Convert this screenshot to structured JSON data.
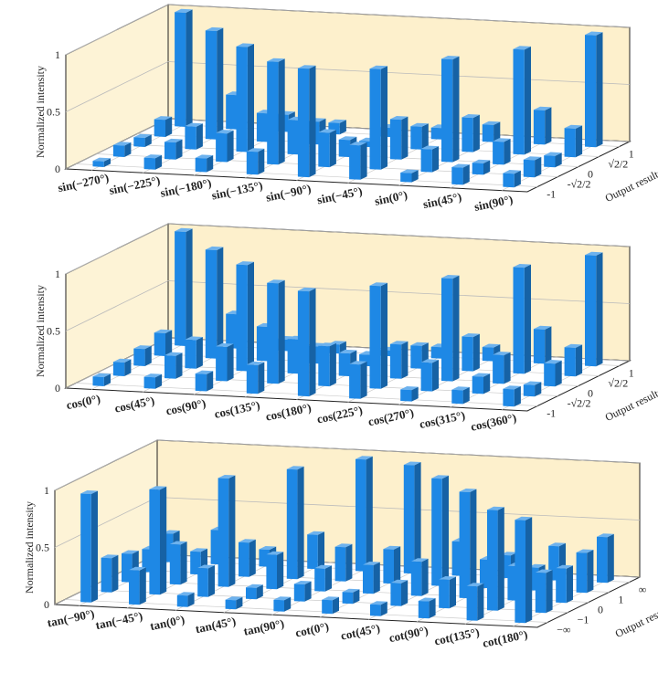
{
  "chart_data": [
    {
      "type": "bar3d",
      "zlabel": "Normalized intensity",
      "depth_label": "Output results",
      "color": "#1e88e5",
      "zlim": [
        0,
        1
      ],
      "zticks": [
        0,
        0.5,
        1
      ],
      "categories": [
        "sin(−270°)",
        "sin(−225°)",
        "sin(−180°)",
        "sin(−135°)",
        "sin(−90°)",
        "sin(−45°)",
        "sin(0°)",
        "sin(45°)",
        "sin(90°)"
      ],
      "series": [
        {
          "name": "-1",
          "values": [
            0.05,
            0.1,
            0.12,
            0.2,
            0.95,
            0.3,
            0.08,
            0.15,
            0.12
          ]
        },
        {
          "name": "-√2/2",
          "values": [
            0.1,
            0.15,
            0.25,
            0.9,
            0.3,
            0.88,
            0.2,
            0.1,
            0.15
          ]
        },
        {
          "name": "0",
          "values": [
            0.08,
            0.2,
            0.92,
            0.3,
            0.15,
            0.35,
            0.9,
            0.2,
            0.1
          ]
        },
        {
          "name": "√2/2",
          "values": [
            0.15,
            0.95,
            0.25,
            0.2,
            0.05,
            0.2,
            0.3,
            0.92,
            0.25
          ]
        },
        {
          "name": "1",
          "values": [
            1.0,
            0.3,
            0.15,
            0.1,
            0.08,
            0.1,
            0.15,
            0.3,
            0.98
          ]
        }
      ]
    },
    {
      "type": "bar3d",
      "zlabel": "Normalized intensity",
      "depth_label": "Output results",
      "color": "#1e88e5",
      "zlim": [
        0,
        1
      ],
      "zticks": [
        0,
        0.5,
        1
      ],
      "categories": [
        "cos(0°)",
        "cos(45°)",
        "cos(90°)",
        "cos(135°)",
        "cos(180°)",
        "cos(225°)",
        "cos(270°)",
        "cos(315°)",
        "cos(360°)"
      ],
      "series": [
        {
          "name": "-1",
          "values": [
            0.08,
            0.1,
            0.15,
            0.25,
            0.92,
            0.3,
            0.1,
            0.12,
            0.15
          ]
        },
        {
          "name": "-√2/2",
          "values": [
            0.12,
            0.2,
            0.3,
            0.88,
            0.35,
            0.9,
            0.25,
            0.15,
            0.1
          ]
        },
        {
          "name": "0",
          "values": [
            0.15,
            0.25,
            0.93,
            0.3,
            0.2,
            0.3,
            0.9,
            0.25,
            0.2
          ]
        },
        {
          "name": "√2/2",
          "values": [
            0.2,
            0.95,
            0.3,
            0.15,
            0.1,
            0.2,
            0.3,
            0.93,
            0.25
          ]
        },
        {
          "name": "1",
          "values": [
            1.0,
            0.3,
            0.1,
            0.08,
            0.05,
            0.1,
            0.12,
            0.3,
            0.97
          ]
        }
      ]
    },
    {
      "type": "bar3d",
      "zlabel": "Normalized intensity",
      "depth_label": "Output results",
      "color": "#1e88e5",
      "zlim": [
        0,
        1
      ],
      "zticks": [
        0,
        0.5,
        1
      ],
      "categories": [
        "tan(−90°)",
        "tan(−45°)",
        "tan(0°)",
        "tan(45°)",
        "tan(90°)",
        "cot(0°)",
        "cot(45°)",
        "cot(90°)",
        "cot(135°)",
        "cot(180°)"
      ],
      "series": [
        {
          "name": "−∞",
          "values": [
            0.95,
            0.3,
            0.1,
            0.08,
            0.1,
            0.12,
            0.1,
            0.15,
            0.3,
            0.9
          ]
        },
        {
          "name": "−1",
          "values": [
            0.3,
            0.92,
            0.25,
            0.1,
            0.15,
            0.1,
            0.2,
            0.25,
            0.88,
            0.35
          ]
        },
        {
          "name": "0",
          "values": [
            0.25,
            0.35,
            0.95,
            0.3,
            0.2,
            0.25,
            0.3,
            0.93,
            0.3,
            0.3
          ]
        },
        {
          "name": "1",
          "values": [
            0.2,
            0.2,
            0.3,
            0.96,
            0.3,
            0.3,
            0.94,
            0.25,
            0.2,
            0.35
          ]
        },
        {
          "name": "∞",
          "values": [
            0.25,
            0.3,
            0.15,
            0.3,
            0.98,
            0.95,
            0.3,
            0.2,
            0.3,
            0.4
          ]
        }
      ]
    }
  ]
}
